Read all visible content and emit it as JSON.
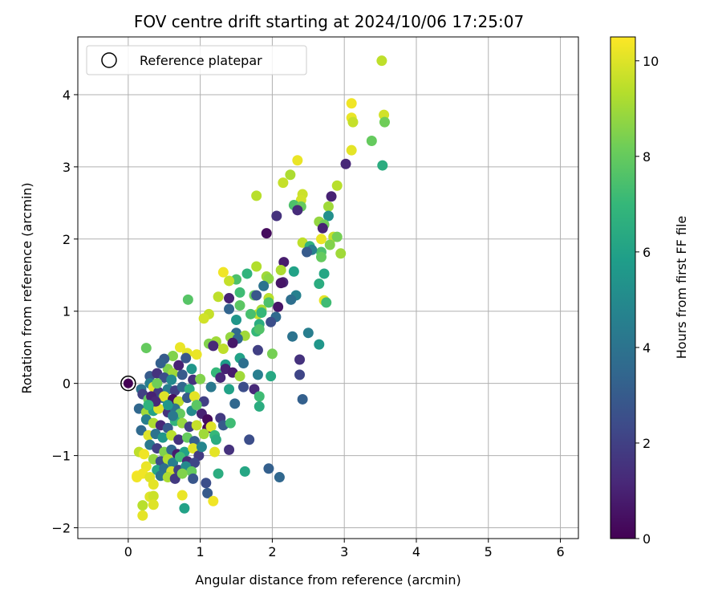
{
  "chart_data": {
    "type": "scatter",
    "title": "FOV centre drift starting at 2024/10/06 17:25:07",
    "xlabel": "Angular distance from reference (arcmin)",
    "ylabel": "Rotation from reference (arcmin)",
    "xlim": [
      -0.7,
      6.25
    ],
    "ylim": [
      -2.15,
      4.8
    ],
    "xticks": [
      0,
      1,
      2,
      3,
      4,
      5,
      6
    ],
    "yticks": [
      -2,
      -1,
      0,
      1,
      2,
      3,
      4
    ],
    "grid": true,
    "legend": {
      "label": "Reference platepar",
      "position": "upper-left",
      "marker": "open-circle"
    },
    "reference_point": {
      "x": 0,
      "y": 0
    },
    "colorbar": {
      "label": "Hours from first FF file",
      "colormap": "viridis",
      "min": 0,
      "max": 10.5,
      "ticks": [
        0,
        2,
        4,
        6,
        8,
        10
      ]
    },
    "points": [
      {
        "x": 3.52,
        "y": 4.47,
        "c": 9.5
      },
      {
        "x": 3.1,
        "y": 3.88,
        "c": 10.3
      },
      {
        "x": 3.55,
        "y": 3.72,
        "c": 9.8
      },
      {
        "x": 3.1,
        "y": 3.68,
        "c": 10.2
      },
      {
        "x": 3.12,
        "y": 3.62,
        "c": 9.6
      },
      {
        "x": 3.56,
        "y": 3.62,
        "c": 8.2
      },
      {
        "x": 3.38,
        "y": 3.36,
        "c": 8.0
      },
      {
        "x": 3.1,
        "y": 3.23,
        "c": 10.1
      },
      {
        "x": 2.35,
        "y": 3.09,
        "c": 10.2
      },
      {
        "x": 3.02,
        "y": 3.04,
        "c": 1.2
      },
      {
        "x": 3.53,
        "y": 3.02,
        "c": 6.5
      },
      {
        "x": 2.25,
        "y": 2.89,
        "c": 9.2
      },
      {
        "x": 2.15,
        "y": 2.78,
        "c": 9.6
      },
      {
        "x": 2.9,
        "y": 2.74,
        "c": 9.4
      },
      {
        "x": 1.78,
        "y": 2.6,
        "c": 9.4
      },
      {
        "x": 2.42,
        "y": 2.62,
        "c": 9.7
      },
      {
        "x": 2.4,
        "y": 2.54,
        "c": 9.8
      },
      {
        "x": 2.82,
        "y": 2.59,
        "c": 1.0
      },
      {
        "x": 2.3,
        "y": 2.47,
        "c": 7.5
      },
      {
        "x": 2.4,
        "y": 2.45,
        "c": 8.0
      },
      {
        "x": 2.78,
        "y": 2.45,
        "c": 9.0
      },
      {
        "x": 2.35,
        "y": 2.4,
        "c": 1.3
      },
      {
        "x": 2.06,
        "y": 2.32,
        "c": 1.5
      },
      {
        "x": 2.78,
        "y": 2.32,
        "c": 5.2
      },
      {
        "x": 2.65,
        "y": 2.24,
        "c": 8.8
      },
      {
        "x": 2.72,
        "y": 2.2,
        "c": 8.2
      },
      {
        "x": 2.7,
        "y": 2.15,
        "c": 1.0
      },
      {
        "x": 1.92,
        "y": 2.08,
        "c": 0.3
      },
      {
        "x": 2.85,
        "y": 2.03,
        "c": 9.6
      },
      {
        "x": 2.9,
        "y": 2.03,
        "c": 8.3
      },
      {
        "x": 2.68,
        "y": 2.0,
        "c": 10.2
      },
      {
        "x": 2.42,
        "y": 1.95,
        "c": 9.5
      },
      {
        "x": 2.52,
        "y": 1.9,
        "c": 6.8
      },
      {
        "x": 2.8,
        "y": 1.92,
        "c": 8.5
      },
      {
        "x": 2.95,
        "y": 1.8,
        "c": 9.0
      },
      {
        "x": 2.68,
        "y": 1.82,
        "c": 7.5
      },
      {
        "x": 2.55,
        "y": 1.85,
        "c": 4.5
      },
      {
        "x": 2.48,
        "y": 1.82,
        "c": 3.0
      },
      {
        "x": 2.68,
        "y": 1.75,
        "c": 8.0
      },
      {
        "x": 2.16,
        "y": 1.68,
        "c": 0.8
      },
      {
        "x": 1.78,
        "y": 1.62,
        "c": 9.3
      },
      {
        "x": 2.12,
        "y": 1.57,
        "c": 9.2
      },
      {
        "x": 1.32,
        "y": 1.54,
        "c": 10.3
      },
      {
        "x": 2.3,
        "y": 1.55,
        "c": 6.0
      },
      {
        "x": 2.72,
        "y": 1.52,
        "c": 6.2
      },
      {
        "x": 1.65,
        "y": 1.52,
        "c": 6.8
      },
      {
        "x": 1.5,
        "y": 1.44,
        "c": 7.5
      },
      {
        "x": 1.4,
        "y": 1.42,
        "c": 9.6
      },
      {
        "x": 1.92,
        "y": 1.48,
        "c": 9.0
      },
      {
        "x": 1.95,
        "y": 1.45,
        "c": 8.7
      },
      {
        "x": 2.15,
        "y": 1.4,
        "c": 1.1
      },
      {
        "x": 2.12,
        "y": 1.39,
        "c": 0.6
      },
      {
        "x": 2.65,
        "y": 1.38,
        "c": 6.5
      },
      {
        "x": 1.88,
        "y": 1.35,
        "c": 4.0
      },
      {
        "x": 1.55,
        "y": 1.26,
        "c": 7.2
      },
      {
        "x": 1.75,
        "y": 1.22,
        "c": 8.0
      },
      {
        "x": 1.95,
        "y": 1.18,
        "c": 9.4
      },
      {
        "x": 1.4,
        "y": 1.18,
        "c": 1.0
      },
      {
        "x": 1.25,
        "y": 1.2,
        "c": 9.5
      },
      {
        "x": 0.83,
        "y": 1.16,
        "c": 7.7
      },
      {
        "x": 1.78,
        "y": 1.22,
        "c": 2.8
      },
      {
        "x": 2.33,
        "y": 1.22,
        "c": 4.6
      },
      {
        "x": 2.26,
        "y": 1.16,
        "c": 3.8
      },
      {
        "x": 1.55,
        "y": 1.08,
        "c": 7.8
      },
      {
        "x": 2.08,
        "y": 1.06,
        "c": 0.6
      },
      {
        "x": 2.72,
        "y": 1.15,
        "c": 10.1
      },
      {
        "x": 2.75,
        "y": 1.12,
        "c": 7.2
      },
      {
        "x": 1.95,
        "y": 1.12,
        "c": 7.5
      },
      {
        "x": 1.4,
        "y": 1.03,
        "c": 3.4
      },
      {
        "x": 1.85,
        "y": 1.02,
        "c": 9.1
      },
      {
        "x": 1.8,
        "y": 0.96,
        "c": 9.6
      },
      {
        "x": 1.85,
        "y": 0.98,
        "c": 7.0
      },
      {
        "x": 1.12,
        "y": 0.96,
        "c": 9.6
      },
      {
        "x": 1.7,
        "y": 0.96,
        "c": 7.4
      },
      {
        "x": 1.05,
        "y": 0.9,
        "c": 9.8
      },
      {
        "x": 1.5,
        "y": 0.88,
        "c": 5.5
      },
      {
        "x": 2.05,
        "y": 0.92,
        "c": 3.6
      },
      {
        "x": 1.98,
        "y": 0.85,
        "c": 2.5
      },
      {
        "x": 1.82,
        "y": 0.82,
        "c": 6.5
      },
      {
        "x": 1.78,
        "y": 0.72,
        "c": 7.0
      },
      {
        "x": 1.82,
        "y": 0.75,
        "c": 7.6
      },
      {
        "x": 1.5,
        "y": 0.7,
        "c": 3.6
      },
      {
        "x": 1.62,
        "y": 0.66,
        "c": 9.0
      },
      {
        "x": 2.28,
        "y": 0.65,
        "c": 4.0
      },
      {
        "x": 2.5,
        "y": 0.7,
        "c": 4.5
      },
      {
        "x": 1.42,
        "y": 0.64,
        "c": 8.8
      },
      {
        "x": 1.22,
        "y": 0.58,
        "c": 9.0
      },
      {
        "x": 1.52,
        "y": 0.62,
        "c": 3.5
      },
      {
        "x": 1.12,
        "y": 0.55,
        "c": 8.5
      },
      {
        "x": 1.18,
        "y": 0.52,
        "c": 1.2
      },
      {
        "x": 1.32,
        "y": 0.48,
        "c": 9.5
      },
      {
        "x": 1.45,
        "y": 0.56,
        "c": 0.7
      },
      {
        "x": 2.65,
        "y": 0.54,
        "c": 5.5
      },
      {
        "x": 1.8,
        "y": 0.46,
        "c": 2.0
      },
      {
        "x": 0.72,
        "y": 0.5,
        "c": 10.2
      },
      {
        "x": 0.82,
        "y": 0.42,
        "c": 10.1
      },
      {
        "x": 0.95,
        "y": 0.4,
        "c": 10.2
      },
      {
        "x": 0.25,
        "y": 0.49,
        "c": 8.0
      },
      {
        "x": 0.62,
        "y": 0.38,
        "c": 8.5
      },
      {
        "x": 2.0,
        "y": 0.41,
        "c": 8.3
      },
      {
        "x": 2.38,
        "y": 0.33,
        "c": 1.5
      },
      {
        "x": 1.55,
        "y": 0.35,
        "c": 6.0
      },
      {
        "x": 1.6,
        "y": 0.28,
        "c": 3.8
      },
      {
        "x": 0.5,
        "y": 0.34,
        "c": 3.0
      },
      {
        "x": 1.35,
        "y": 0.26,
        "c": 5.8
      },
      {
        "x": 1.35,
        "y": 0.2,
        "c": 1.0
      },
      {
        "x": 1.22,
        "y": 0.15,
        "c": 7.0
      },
      {
        "x": 1.45,
        "y": 0.15,
        "c": 0.8
      },
      {
        "x": 0.55,
        "y": 0.2,
        "c": 8.5
      },
      {
        "x": 0.88,
        "y": 0.2,
        "c": 5.5
      },
      {
        "x": 0.62,
        "y": 0.14,
        "c": 9.0
      },
      {
        "x": 2.38,
        "y": 0.12,
        "c": 2.2
      },
      {
        "x": 1.8,
        "y": 0.12,
        "c": 4.5
      },
      {
        "x": 1.98,
        "y": 0.1,
        "c": 6.3
      },
      {
        "x": 1.55,
        "y": 0.1,
        "c": 9.0
      },
      {
        "x": 1.28,
        "y": 0.08,
        "c": 1.2
      },
      {
        "x": 0.3,
        "y": 0.1,
        "c": 3.0
      },
      {
        "x": 0.4,
        "y": 0.14,
        "c": 1.5
      },
      {
        "x": 0.5,
        "y": 0.08,
        "c": 2.5
      },
      {
        "x": 0.75,
        "y": 0.12,
        "c": 3.0
      },
      {
        "x": 0.9,
        "y": 0.05,
        "c": 1.5
      },
      {
        "x": 1.0,
        "y": 0.06,
        "c": 8.5
      },
      {
        "x": 0.3,
        "y": 0.0,
        "c": 4.5
      },
      {
        "x": 0.18,
        "y": -0.08,
        "c": 4.0
      },
      {
        "x": 0.35,
        "y": -0.05,
        "c": 10.1
      },
      {
        "x": 0.42,
        "y": -0.12,
        "c": 1.8
      },
      {
        "x": 0.55,
        "y": -0.08,
        "c": 4.5
      },
      {
        "x": 0.65,
        "y": -0.1,
        "c": 2.0
      },
      {
        "x": 0.75,
        "y": -0.05,
        "c": 3.5
      },
      {
        "x": 0.85,
        "y": -0.08,
        "c": 6.5
      },
      {
        "x": 1.15,
        "y": -0.05,
        "c": 4.2
      },
      {
        "x": 1.4,
        "y": -0.08,
        "c": 6.0
      },
      {
        "x": 1.6,
        "y": -0.05,
        "c": 2.5
      },
      {
        "x": 1.75,
        "y": -0.08,
        "c": 1.2
      },
      {
        "x": 1.82,
        "y": -0.18,
        "c": 7.2
      },
      {
        "x": 2.42,
        "y": -0.22,
        "c": 3.2
      },
      {
        "x": 1.48,
        "y": -0.28,
        "c": 3.5
      },
      {
        "x": 1.82,
        "y": -0.32,
        "c": 6.5
      },
      {
        "x": 0.2,
        "y": -0.15,
        "c": 2.0
      },
      {
        "x": 0.28,
        "y": -0.22,
        "c": 8.0
      },
      {
        "x": 0.32,
        "y": -0.18,
        "c": 1.0
      },
      {
        "x": 0.48,
        "y": -0.2,
        "c": 4.0
      },
      {
        "x": 0.5,
        "y": -0.18,
        "c": 10.0
      },
      {
        "x": 0.62,
        "y": -0.22,
        "c": 0.5
      },
      {
        "x": 0.7,
        "y": -0.25,
        "c": 9.5
      },
      {
        "x": 0.82,
        "y": -0.2,
        "c": 3.0
      },
      {
        "x": 0.92,
        "y": -0.18,
        "c": 10.1
      },
      {
        "x": 1.05,
        "y": -0.25,
        "c": 2.0
      },
      {
        "x": 0.15,
        "y": -0.35,
        "c": 3.5
      },
      {
        "x": 0.25,
        "y": -0.4,
        "c": 9.0
      },
      {
        "x": 0.35,
        "y": -0.38,
        "c": 6.0
      },
      {
        "x": 0.55,
        "y": -0.4,
        "c": 1.5
      },
      {
        "x": 0.65,
        "y": -0.35,
        "c": 4.0
      },
      {
        "x": 0.72,
        "y": -0.42,
        "c": 8.0
      },
      {
        "x": 0.88,
        "y": -0.38,
        "c": 5.0
      },
      {
        "x": 1.02,
        "y": -0.42,
        "c": 1.0
      },
      {
        "x": 1.28,
        "y": -0.48,
        "c": 1.8
      },
      {
        "x": 1.1,
        "y": -0.5,
        "c": 0.3
      },
      {
        "x": 1.1,
        "y": -0.62,
        "c": 0.2
      },
      {
        "x": 1.15,
        "y": -0.6,
        "c": 10.0
      },
      {
        "x": 1.2,
        "y": -0.72,
        "c": 7.0
      },
      {
        "x": 1.32,
        "y": -0.58,
        "c": 3.0
      },
      {
        "x": 1.42,
        "y": -0.55,
        "c": 7.2
      },
      {
        "x": 1.68,
        "y": -0.78,
        "c": 2.5
      },
      {
        "x": 0.25,
        "y": -0.5,
        "c": 4.5
      },
      {
        "x": 0.35,
        "y": -0.55,
        "c": 9.2
      },
      {
        "x": 0.45,
        "y": -0.58,
        "c": 1.2
      },
      {
        "x": 0.55,
        "y": -0.62,
        "c": 3.0
      },
      {
        "x": 0.65,
        "y": -0.52,
        "c": 6.8
      },
      {
        "x": 0.75,
        "y": -0.55,
        "c": 8.8
      },
      {
        "x": 0.85,
        "y": -0.6,
        "c": 2.0
      },
      {
        "x": 0.95,
        "y": -0.58,
        "c": 9.6
      },
      {
        "x": 0.18,
        "y": -0.65,
        "c": 3.6
      },
      {
        "x": 0.28,
        "y": -0.72,
        "c": 10.0
      },
      {
        "x": 0.38,
        "y": -0.7,
        "c": 4.0
      },
      {
        "x": 0.48,
        "y": -0.75,
        "c": 5.5
      },
      {
        "x": 0.6,
        "y": -0.72,
        "c": 9.4
      },
      {
        "x": 0.7,
        "y": -0.78,
        "c": 1.5
      },
      {
        "x": 0.82,
        "y": -0.75,
        "c": 8.0
      },
      {
        "x": 0.92,
        "y": -0.8,
        "c": 3.2
      },
      {
        "x": 1.05,
        "y": -0.7,
        "c": 9.0
      },
      {
        "x": 1.2,
        "y": -0.95,
        "c": 10.1
      },
      {
        "x": 1.4,
        "y": -0.92,
        "c": 1.5
      },
      {
        "x": 1.22,
        "y": -0.78,
        "c": 6.5
      },
      {
        "x": 0.15,
        "y": -0.95,
        "c": 9.5
      },
      {
        "x": 0.22,
        "y": -0.98,
        "c": 10.3
      },
      {
        "x": 0.3,
        "y": -0.85,
        "c": 4.2
      },
      {
        "x": 0.4,
        "y": -0.9,
        "c": 2.0
      },
      {
        "x": 0.5,
        "y": -0.95,
        "c": 8.5
      },
      {
        "x": 0.6,
        "y": -0.92,
        "c": 3.5
      },
      {
        "x": 0.68,
        "y": -0.98,
        "c": 0.8
      },
      {
        "x": 0.78,
        "y": -0.95,
        "c": 6.0
      },
      {
        "x": 0.9,
        "y": -0.9,
        "c": 10.0
      },
      {
        "x": 0.98,
        "y": -1.0,
        "c": 1.8
      },
      {
        "x": 1.02,
        "y": -0.88,
        "c": 4.8
      },
      {
        "x": 0.35,
        "y": -1.05,
        "c": 8.8
      },
      {
        "x": 0.45,
        "y": -1.08,
        "c": 2.5
      },
      {
        "x": 0.55,
        "y": -1.05,
        "c": 9.3
      },
      {
        "x": 0.62,
        "y": -1.1,
        "c": 4.5
      },
      {
        "x": 0.72,
        "y": -1.02,
        "c": 7.2
      },
      {
        "x": 0.82,
        "y": -1.08,
        "c": 1.2
      },
      {
        "x": 0.92,
        "y": -1.1,
        "c": 2.2
      },
      {
        "x": 0.25,
        "y": -1.15,
        "c": 10.2
      },
      {
        "x": 0.4,
        "y": -1.2,
        "c": 6.2
      },
      {
        "x": 0.5,
        "y": -1.18,
        "c": 3.8
      },
      {
        "x": 0.6,
        "y": -1.22,
        "c": 9.8
      },
      {
        "x": 0.7,
        "y": -1.2,
        "c": 2.0
      },
      {
        "x": 0.8,
        "y": -1.15,
        "c": 5.0
      },
      {
        "x": 0.88,
        "y": -1.22,
        "c": 8.0
      },
      {
        "x": 1.62,
        "y": -1.22,
        "c": 6.2
      },
      {
        "x": 1.95,
        "y": -1.18,
        "c": 3.2
      },
      {
        "x": 2.1,
        "y": -1.3,
        "c": 3.5
      },
      {
        "x": 1.25,
        "y": -1.25,
        "c": 6.5
      },
      {
        "x": 0.12,
        "y": -1.28,
        "c": 10.5
      },
      {
        "x": 0.2,
        "y": -1.25,
        "c": 10.3
      },
      {
        "x": 0.3,
        "y": -1.3,
        "c": 10.0
      },
      {
        "x": 0.45,
        "y": -1.28,
        "c": 4.0
      },
      {
        "x": 0.55,
        "y": -1.3,
        "c": 9.2
      },
      {
        "x": 0.65,
        "y": -1.32,
        "c": 1.8
      },
      {
        "x": 0.75,
        "y": -1.25,
        "c": 8.5
      },
      {
        "x": 0.9,
        "y": -1.32,
        "c": 2.8
      },
      {
        "x": 1.08,
        "y": -1.38,
        "c": 2.5
      },
      {
        "x": 0.12,
        "y": -1.3,
        "c": 10.3
      },
      {
        "x": 0.35,
        "y": -1.4,
        "c": 10.1
      },
      {
        "x": 1.1,
        "y": -1.52,
        "c": 3.0
      },
      {
        "x": 0.75,
        "y": -1.55,
        "c": 10.2
      },
      {
        "x": 0.3,
        "y": -1.57,
        "c": 10.0
      },
      {
        "x": 0.35,
        "y": -1.56,
        "c": 9.7
      },
      {
        "x": 0.2,
        "y": -1.69,
        "c": 9.4
      },
      {
        "x": 0.35,
        "y": -1.68,
        "c": 10.0
      },
      {
        "x": 0.78,
        "y": -1.73,
        "c": 6.0
      },
      {
        "x": 0.2,
        "y": -1.83,
        "c": 10.1
      },
      {
        "x": 1.18,
        "y": -1.63,
        "c": 10.3
      },
      {
        "x": 0.4,
        "y": 0.0,
        "c": 8.2
      },
      {
        "x": 0.6,
        "y": 0.05,
        "c": 5.0
      },
      {
        "x": 0.45,
        "y": 0.28,
        "c": 3.2
      },
      {
        "x": 0.7,
        "y": 0.25,
        "c": 1.0
      },
      {
        "x": 0.8,
        "y": 0.35,
        "c": 2.8
      },
      {
        "x": 0.55,
        "y": -0.3,
        "c": 5.5
      },
      {
        "x": 0.42,
        "y": -0.35,
        "c": 10.0
      },
      {
        "x": 0.95,
        "y": -0.3,
        "c": 7.8
      },
      {
        "x": 0.62,
        "y": -0.45,
        "c": 4.2
      },
      {
        "x": 0.38,
        "y": -0.25,
        "c": 1.2
      },
      {
        "x": 0.28,
        "y": -0.3,
        "c": 6.8
      }
    ]
  }
}
